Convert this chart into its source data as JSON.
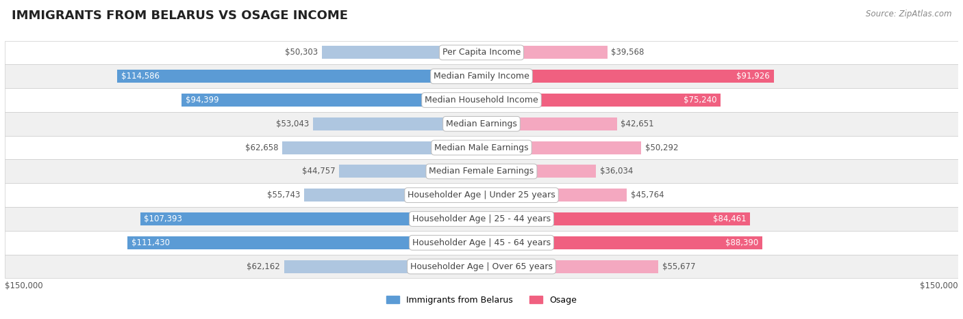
{
  "title": "IMMIGRANTS FROM BELARUS VS OSAGE INCOME",
  "source": "Source: ZipAtlas.com",
  "categories": [
    "Per Capita Income",
    "Median Family Income",
    "Median Household Income",
    "Median Earnings",
    "Median Male Earnings",
    "Median Female Earnings",
    "Householder Age | Under 25 years",
    "Householder Age | 25 - 44 years",
    "Householder Age | 45 - 64 years",
    "Householder Age | Over 65 years"
  ],
  "belarus_values": [
    50303,
    114586,
    94399,
    53043,
    62658,
    44757,
    55743,
    107393,
    111430,
    62162
  ],
  "osage_values": [
    39568,
    91926,
    75240,
    42651,
    50292,
    36034,
    45764,
    84461,
    88390,
    55677
  ],
  "max_val": 150000,
  "belarus_color_light": "#aec6e0",
  "belarus_color_dark": "#5b9bd5",
  "osage_color_light": "#f4a8c0",
  "osage_color_dark": "#f06080",
  "belarus_threshold": 90000,
  "osage_threshold": 75000,
  "row_colors": [
    "#ffffff",
    "#f0f0f0"
  ],
  "row_border_color": "#cccccc",
  "title_fontsize": 13,
  "label_fontsize": 9.0,
  "value_fontsize": 8.5,
  "legend_fontsize": 9,
  "source_fontsize": 8.5
}
